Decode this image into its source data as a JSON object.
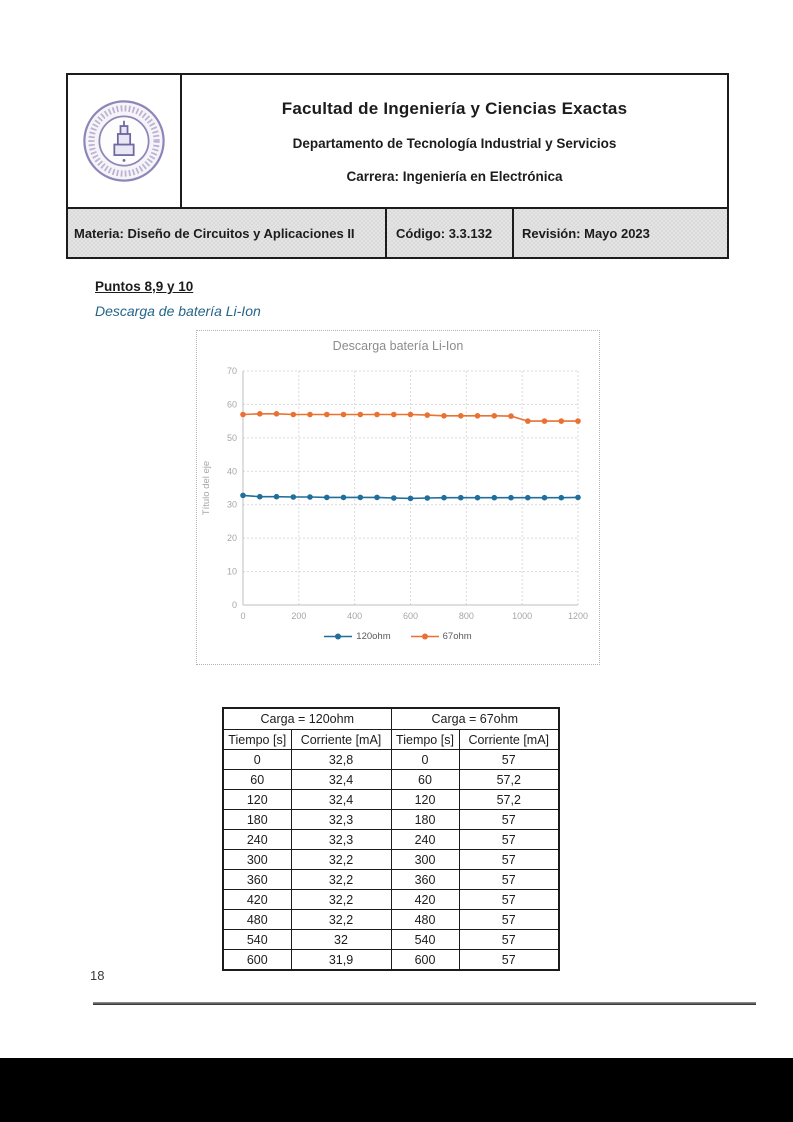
{
  "header": {
    "logo": "universidad-argentina-de-la-empresa-seal",
    "faculty": "Facultad de Ingeniería y Ciencias Exactas",
    "department": "Departamento de Tecnología Industrial y Servicios",
    "career": "Carrera: Ingeniería en Electrónica",
    "materia": "Materia: Diseño de Circuitos y Aplicaciones II",
    "codigo": "Código: 3.3.132",
    "revision": "Revisión: Mayo 2023"
  },
  "body": {
    "section_title": "Puntos 8,9 y 10",
    "subsection_title": "Descarga de batería Li-Ion"
  },
  "chart_data": {
    "type": "line",
    "title": "Descarga batería Li-Ion",
    "xlabel": "",
    "ylabel": "Título del eje",
    "x": [
      0,
      60,
      120,
      180,
      240,
      300,
      360,
      420,
      480,
      540,
      600,
      660,
      720,
      780,
      840,
      900,
      960,
      1020,
      1080,
      1140,
      1200
    ],
    "series": [
      {
        "name": "120ohm",
        "color": "#1F6E9C",
        "values": [
          32.8,
          32.4,
          32.4,
          32.3,
          32.3,
          32.2,
          32.2,
          32.2,
          32.2,
          32.0,
          31.9,
          32.0,
          32.1,
          32.1,
          32.1,
          32.1,
          32.1,
          32.1,
          32.1,
          32.1,
          32.2
        ]
      },
      {
        "name": "67ohm",
        "color": "#E97132",
        "values": [
          57,
          57.2,
          57.2,
          57,
          57,
          57,
          57,
          57,
          57,
          57,
          57,
          56.8,
          56.6,
          56.6,
          56.6,
          56.6,
          56.5,
          55,
          55,
          55,
          55
        ]
      }
    ],
    "xlim": [
      0,
      1200
    ],
    "ylim": [
      0,
      70
    ],
    "xticks": [
      0,
      200,
      400,
      600,
      800,
      1000,
      1200
    ],
    "yticks": [
      0,
      10,
      20,
      30,
      40,
      50,
      60,
      70
    ],
    "grid": true,
    "legend_position": "bottom"
  },
  "table": {
    "group_headers": [
      "Carga = 120ohm",
      "Carga = 67ohm"
    ],
    "col_headers": [
      "Tiempo [s]",
      "Corriente [mA]",
      "Tiempo [s]",
      "Corriente [mA]"
    ],
    "rows": [
      [
        "0",
        "32,8",
        "0",
        "57"
      ],
      [
        "60",
        "32,4",
        "60",
        "57,2"
      ],
      [
        "120",
        "32,4",
        "120",
        "57,2"
      ],
      [
        "180",
        "32,3",
        "180",
        "57"
      ],
      [
        "240",
        "32,3",
        "240",
        "57"
      ],
      [
        "300",
        "32,2",
        "300",
        "57"
      ],
      [
        "360",
        "32,2",
        "360",
        "57"
      ],
      [
        "420",
        "32,2",
        "420",
        "57"
      ],
      [
        "480",
        "32,2",
        "480",
        "57"
      ],
      [
        "540",
        "32",
        "540",
        "57"
      ],
      [
        "600",
        "31,9",
        "600",
        "57"
      ]
    ]
  },
  "footer": {
    "page_number": "18"
  }
}
